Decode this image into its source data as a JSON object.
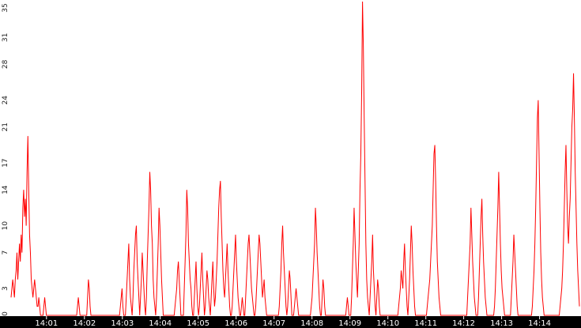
{
  "chart_data": {
    "type": "line",
    "title": "",
    "xlabel": "",
    "ylabel": "",
    "line_color": "#ff0000",
    "background": "#ffffff",
    "axis_bar_color": "#000000",
    "ylim": [
      0,
      35
    ],
    "y_ticks": [
      "0",
      "3",
      "7",
      "10",
      "14",
      "17",
      "21",
      "24",
      "28",
      "31",
      "35"
    ],
    "x_ticks": [
      "14:01",
      "14:02",
      "14:03",
      "14:04",
      "14:05",
      "14:06",
      "14:07",
      "14:08",
      "14:09",
      "14:10",
      "14:11",
      "14:12",
      "14:13",
      "14:14"
    ],
    "xlim": [
      "14:00:04",
      "14:15:03"
    ],
    "sample_interval_seconds": 1,
    "series": [
      {
        "values": [
          2,
          3,
          4,
          3,
          2,
          4,
          5,
          7,
          4,
          6,
          8,
          6,
          9,
          7,
          12,
          14,
          11,
          13,
          10,
          16,
          20,
          14,
          9,
          7,
          4,
          3,
          2,
          3,
          4,
          3,
          2,
          1,
          1,
          2,
          1,
          0,
          0,
          0,
          0,
          1,
          2,
          1,
          0,
          0,
          0,
          0,
          0,
          0,
          0,
          0,
          0,
          0,
          0,
          0,
          0,
          0,
          0,
          0,
          0,
          0,
          0,
          0,
          0,
          0,
          0,
          0,
          0,
          0,
          0,
          0,
          0,
          0,
          0,
          0,
          0,
          0,
          0,
          0,
          0,
          1,
          2,
          1,
          0,
          0,
          0,
          0,
          0,
          0,
          0,
          0,
          0,
          2,
          4,
          3,
          1,
          0,
          0,
          0,
          0,
          0,
          0,
          0,
          0,
          0,
          0,
          0,
          0,
          0,
          0,
          0,
          0,
          0,
          0,
          0,
          0,
          0,
          0,
          0,
          0,
          0,
          0,
          0,
          0,
          0,
          0,
          0,
          0,
          0,
          0,
          0,
          1,
          2,
          3,
          1,
          0,
          0,
          0,
          2,
          4,
          6,
          8,
          4,
          2,
          1,
          0,
          2,
          5,
          7,
          9,
          10,
          6,
          4,
          2,
          0,
          2,
          4,
          7,
          5,
          3,
          1,
          0,
          2,
          6,
          9,
          12,
          16,
          14,
          10,
          8,
          4,
          2,
          1,
          0,
          2,
          5,
          8,
          12,
          10,
          7,
          4,
          2,
          0,
          0,
          0,
          0,
          0,
          0,
          0,
          0,
          0,
          0,
          0,
          0,
          0,
          0,
          1,
          2,
          3,
          5,
          6,
          4,
          2,
          0,
          0,
          0,
          0,
          3,
          6,
          9,
          14,
          12,
          8,
          6,
          4,
          3,
          1,
          0,
          0,
          2,
          4,
          6,
          3,
          1,
          0,
          1,
          3,
          5,
          7,
          4,
          2,
          0,
          1,
          3,
          5,
          4,
          2,
          1,
          0,
          2,
          4,
          6,
          3,
          1,
          2,
          4,
          6,
          9,
          12,
          14,
          15,
          11,
          8,
          5,
          3,
          2,
          4,
          6,
          8,
          5,
          3,
          1,
          0,
          0,
          1,
          3,
          5,
          7,
          9,
          6,
          4,
          2,
          1,
          0,
          0,
          1,
          2,
          1,
          0,
          0,
          2,
          4,
          6,
          8,
          9,
          7,
          5,
          3,
          2,
          1,
          0,
          0,
          1,
          3,
          5,
          7,
          9,
          8,
          6,
          4,
          2,
          3,
          4,
          2,
          1,
          0,
          0,
          0,
          0,
          0,
          0,
          0,
          0,
          0,
          0,
          0,
          0,
          0,
          0,
          0,
          1,
          3,
          5,
          8,
          10,
          7,
          5,
          3,
          1,
          0,
          1,
          3,
          5,
          4,
          2,
          0,
          0,
          0,
          1,
          2,
          3,
          2,
          1,
          0,
          0,
          0,
          0,
          0,
          0,
          0,
          0,
          0,
          0,
          0,
          0,
          0,
          0,
          0,
          1,
          2,
          4,
          6,
          8,
          12,
          10,
          7,
          5,
          3,
          1,
          0,
          0,
          2,
          4,
          3,
          1,
          0,
          0,
          0,
          0,
          0,
          0,
          0,
          0,
          0,
          0,
          0,
          0,
          0,
          0,
          0,
          0,
          0,
          0,
          0,
          0,
          0,
          0,
          0,
          0,
          0,
          1,
          2,
          1,
          0,
          0,
          0,
          2,
          5,
          8,
          12,
          9,
          6,
          4,
          2,
          5,
          8,
          14,
          18,
          25,
          35,
          30,
          22,
          15,
          8,
          4,
          2,
          1,
          0,
          2,
          4,
          6,
          9,
          5,
          3,
          1,
          0,
          2,
          4,
          3,
          1,
          0,
          0,
          0,
          0,
          0,
          0,
          0,
          0,
          0,
          0,
          0,
          0,
          0,
          0,
          0,
          0,
          0,
          0,
          0,
          0,
          0,
          0,
          1,
          2,
          3,
          5,
          4,
          3,
          6,
          8,
          5,
          3,
          1,
          0,
          2,
          4,
          7,
          10,
          8,
          5,
          3,
          1,
          0,
          0,
          0,
          0,
          0,
          0,
          0,
          0,
          0,
          0,
          0,
          0,
          0,
          0,
          1,
          2,
          3,
          4,
          6,
          8,
          10,
          14,
          18,
          19,
          15,
          10,
          6,
          4,
          2,
          1,
          0,
          0,
          0,
          0,
          0,
          0,
          0,
          0,
          0,
          0,
          0,
          0,
          0,
          0,
          0,
          0,
          0,
          0,
          0,
          0,
          0,
          0,
          0,
          0,
          0,
          0,
          0,
          0,
          0,
          0,
          0,
          0,
          2,
          4,
          6,
          8,
          12,
          9,
          6,
          4,
          2,
          1,
          0,
          0,
          0,
          2,
          5,
          8,
          11,
          13,
          9,
          6,
          4,
          2,
          1,
          0,
          0,
          0,
          0,
          0,
          0,
          0,
          0,
          0,
          1,
          3,
          6,
          9,
          12,
          16,
          12,
          8,
          5,
          3,
          2,
          1,
          0,
          0,
          0,
          0,
          0,
          0,
          0,
          0,
          2,
          4,
          6,
          9,
          7,
          5,
          3,
          1,
          0,
          0,
          0,
          0,
          0,
          0,
          0,
          0,
          0,
          0,
          0,
          0,
          0,
          0,
          0,
          0,
          0,
          1,
          3,
          5,
          8,
          12,
          17,
          22,
          24,
          18,
          12,
          7,
          4,
          2,
          1,
          0,
          0,
          0,
          0,
          0,
          0,
          0,
          0,
          0,
          0,
          0,
          0,
          0,
          0,
          0,
          0,
          0,
          0,
          0,
          1,
          2,
          3,
          5,
          8,
          12,
          16,
          19,
          14,
          10,
          8,
          11,
          13,
          17,
          21,
          23,
          27,
          22,
          16,
          12,
          8,
          5,
          3,
          1
        ]
      }
    ]
  }
}
